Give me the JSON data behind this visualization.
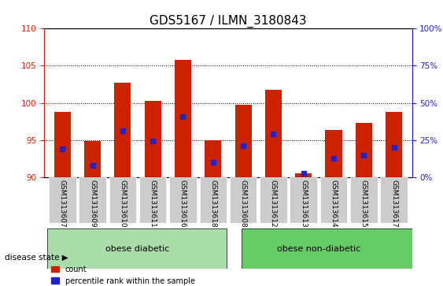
{
  "title": "GDS5167 / ILMN_3180843",
  "samples": [
    "GSM1313607",
    "GSM1313609",
    "GSM1313610",
    "GSM1313611",
    "GSM1313616",
    "GSM1313618",
    "GSM1313608",
    "GSM1313612",
    "GSM1313613",
    "GSM1313614",
    "GSM1313615",
    "GSM1313617"
  ],
  "bar_tops": [
    98.8,
    94.9,
    102.7,
    100.3,
    105.8,
    95.0,
    99.8,
    101.8,
    90.5,
    96.4,
    97.3,
    98.8
  ],
  "blue_dots": [
    93.8,
    91.6,
    96.3,
    94.9,
    98.2,
    92.0,
    94.2,
    95.8,
    90.5,
    92.5,
    93.0,
    94.0
  ],
  "baseline": 90,
  "ylim": [
    90,
    110
  ],
  "yticks": [
    90,
    95,
    100,
    105,
    110
  ],
  "right_yticks": [
    0,
    25,
    50,
    75,
    100
  ],
  "bar_color": "#cc2200",
  "dot_color": "#2222cc",
  "group1_label": "obese diabetic",
  "group2_label": "obese non-diabetic",
  "group1_count": 6,
  "group2_count": 6,
  "group_bg1": "#aaddaa",
  "group_bg2": "#66cc66",
  "xlabel_label": "disease state",
  "legend_count": "count",
  "legend_pct": "percentile rank within the sample",
  "title_fontsize": 11,
  "tick_fontsize": 7.5,
  "label_fontsize": 8,
  "bar_width": 0.55
}
